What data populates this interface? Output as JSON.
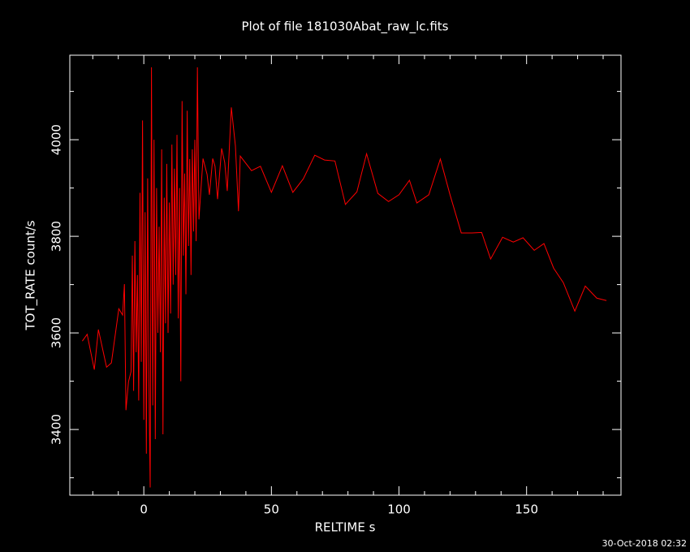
{
  "chart_data": {
    "type": "line",
    "title": "Plot of file 181030Abat_raw_lc.fits",
    "xlabel": "RELTIME  s",
    "ylabel": "TOT_RATE  count/s",
    "footnote": "30-Oct-2018 02:32",
    "color": "#ff0000",
    "x": [
      -24.1,
      -22.2,
      -19.4,
      -17.8,
      -14.6,
      -12.7,
      -9.8,
      -8.3,
      -7.6,
      -7.0,
      -6.0,
      -5,
      -4.5,
      -4,
      -3.5,
      -3,
      -2.5,
      -2,
      -1.5,
      -1,
      -0.5,
      0,
      0.5,
      1,
      1.5,
      2,
      2.5,
      3,
      3.5,
      4,
      4.5,
      5,
      5.5,
      6,
      6.5,
      7,
      7.5,
      8,
      8.5,
      9,
      9.5,
      10,
      10.5,
      11,
      11.5,
      12,
      12.5,
      13,
      13.5,
      14,
      14.5,
      15,
      15.5,
      16,
      16.5,
      17,
      17.5,
      18,
      18.5,
      19,
      19.5,
      20,
      20.5,
      21,
      21.6,
      23.2,
      24.8,
      25.7,
      27.0,
      27.9,
      28.9,
      30.5,
      31.7,
      32.7,
      34.3,
      35.9,
      37.1,
      37.8,
      42.2,
      45.7,
      50,
      54.3,
      58.4,
      62.5,
      67,
      70.8,
      74.9,
      79,
      83.5,
      87.3,
      91.7,
      95.9,
      100,
      104.1,
      107,
      111.7,
      116.2,
      120,
      124.4,
      128.6,
      132.4,
      135.9,
      140.6,
      144.8,
      148.6,
      153,
      156.8,
      160.6,
      164.4,
      168.9,
      173,
      177.5,
      181.3
    ],
    "values": [
      3583,
      3597,
      3524,
      3607,
      3529,
      3538,
      3650,
      3637,
      3701,
      3440,
      3499,
      3520,
      3760,
      3480,
      3790,
      3560,
      3720,
      3460,
      3890,
      3540,
      4040,
      3420,
      3850,
      3350,
      3920,
      3500,
      3280,
      4150,
      3450,
      4000,
      3380,
      3900,
      3600,
      3820,
      3560,
      3980,
      3390,
      3880,
      3620,
      3950,
      3600,
      3870,
      3640,
      3990,
      3700,
      3940,
      3720,
      4010,
      3630,
      3900,
      3500,
      4080,
      3760,
      3930,
      3680,
      4060,
      3780,
      3960,
      3720,
      3980,
      3810,
      4000,
      3790,
      4150,
      3835,
      3961,
      3928,
      3886,
      3961,
      3945,
      3877,
      3982,
      3953,
      3894,
      4067,
      3987,
      3852,
      3966,
      3936,
      3945,
      3891,
      3946,
      3891,
      3919,
      3968,
      3958,
      3956,
      3866,
      3892,
      3971,
      3889,
      3872,
      3886,
      3916,
      3869,
      3886,
      3960,
      3886,
      3807,
      3807,
      3808,
      3753,
      3798,
      3788,
      3797,
      3771,
      3785,
      3734,
      3704,
      3645,
      3697,
      3672,
      3667
    ],
    "xlim": [
      -29,
      187
    ],
    "ylim": [
      3264,
      4175
    ],
    "xticks": [
      0,
      50,
      100,
      150
    ],
    "yticks": [
      3400,
      3600,
      3800,
      4000
    ],
    "xminor_ticks": [
      -20,
      -10,
      10,
      20,
      30,
      40,
      60,
      70,
      80,
      90,
      110,
      120,
      130,
      140,
      160,
      170,
      180
    ],
    "yminor_ticks": [
      3300,
      3500,
      3700,
      3900,
      4100
    ]
  }
}
